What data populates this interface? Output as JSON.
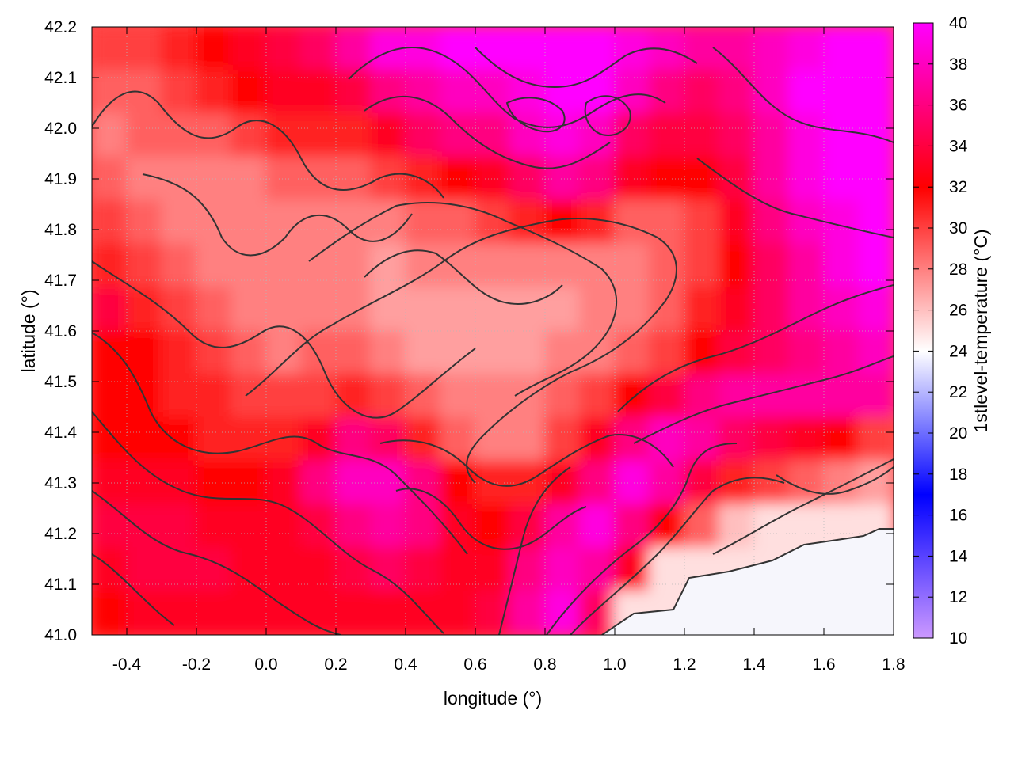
{
  "chart_data": {
    "type": "heatmap",
    "title": "",
    "xlabel": "longitude (°)",
    "ylabel": "latitude (°)",
    "colorbar_label": "1stlevel-temperature (°C)",
    "xlim": [
      -0.5,
      1.8
    ],
    "ylim": [
      41.0,
      42.2
    ],
    "colorbar_range": [
      10,
      40
    ],
    "x_ticks": [
      "-0.4",
      "-0.2",
      "0.0",
      "0.2",
      "0.4",
      "0.6",
      "0.8",
      "1.0",
      "1.2",
      "1.4",
      "1.6",
      "1.8"
    ],
    "x_tick_values": [
      -0.4,
      -0.2,
      0.0,
      0.2,
      0.4,
      0.6,
      0.8,
      1.0,
      1.2,
      1.4,
      1.6,
      1.8
    ],
    "y_ticks": [
      "41.0",
      "41.1",
      "41.2",
      "41.3",
      "41.4",
      "41.5",
      "41.6",
      "41.7",
      "41.8",
      "41.9",
      "42.0",
      "42.1",
      "42.2"
    ],
    "y_tick_values": [
      41.0,
      41.1,
      41.2,
      41.3,
      41.4,
      41.5,
      41.6,
      41.7,
      41.8,
      41.9,
      42.0,
      42.1,
      42.2
    ],
    "colorbar_ticks": [
      "10",
      "12",
      "14",
      "16",
      "18",
      "20",
      "22",
      "24",
      "26",
      "28",
      "30",
      "32",
      "34",
      "36",
      "38",
      "40"
    ],
    "colorbar_tick_values": [
      10,
      12,
      14,
      16,
      18,
      20,
      22,
      24,
      26,
      28,
      30,
      32,
      34,
      36,
      38,
      40
    ],
    "colormap_stops": [
      {
        "value": 10,
        "color": "#cc99ff"
      },
      {
        "value": 17,
        "color": "#0000ff"
      },
      {
        "value": 24,
        "color": "#ffffff"
      },
      {
        "value": 32,
        "color": "#ff0000"
      },
      {
        "value": 40,
        "color": "#ff00ff"
      }
    ],
    "grid": true,
    "contour_color": "#333333",
    "heatmap_cells": [
      [
        30,
        30,
        31,
        32,
        33,
        34,
        35,
        37,
        39,
        39,
        40,
        40,
        40,
        40,
        40,
        39,
        38,
        37,
        37,
        38,
        39,
        40,
        40
      ],
      [
        29,
        29,
        30,
        31,
        32,
        33,
        33,
        34,
        36,
        37,
        38,
        38,
        39,
        40,
        40,
        38,
        36,
        35,
        36,
        38,
        40,
        40,
        40
      ],
      [
        28,
        29,
        29,
        29,
        30,
        31,
        31,
        31,
        33,
        35,
        36,
        36,
        38,
        39,
        38,
        35,
        34,
        34,
        35,
        37,
        39,
        40,
        40
      ],
      [
        29,
        28,
        28,
        28,
        28,
        29,
        29,
        29,
        30,
        31,
        32,
        33,
        35,
        37,
        36,
        33,
        32,
        32,
        34,
        37,
        39,
        40,
        40
      ],
      [
        30,
        29,
        28,
        28,
        28,
        28,
        28,
        28,
        28,
        29,
        29,
        30,
        31,
        32,
        31,
        29,
        29,
        30,
        33,
        36,
        38,
        39,
        40
      ],
      [
        31,
        30,
        29,
        28,
        28,
        28,
        28,
        28,
        27,
        28,
        28,
        28,
        28,
        28,
        28,
        28,
        29,
        30,
        32,
        35,
        37,
        39,
        40
      ],
      [
        34,
        31,
        30,
        29,
        28,
        28,
        28,
        28,
        27,
        27,
        27,
        27,
        27,
        27,
        28,
        28,
        29,
        31,
        33,
        35,
        37,
        38,
        39
      ],
      [
        32,
        32,
        31,
        30,
        29,
        28,
        29,
        29,
        28,
        27,
        27,
        27,
        27,
        28,
        28,
        29,
        30,
        32,
        34,
        35,
        36,
        37,
        38
      ],
      [
        32,
        32,
        31,
        31,
        30,
        30,
        30,
        31,
        30,
        29,
        28,
        28,
        28,
        29,
        30,
        32,
        34,
        36,
        37,
        37,
        37,
        37,
        37
      ],
      [
        32,
        32,
        32,
        31,
        31,
        31,
        33,
        36,
        35,
        31,
        29,
        28,
        28,
        30,
        33,
        36,
        38,
        37,
        35,
        34,
        33,
        32,
        30
      ],
      [
        33,
        33,
        33,
        32,
        32,
        33,
        36,
        38,
        38,
        36,
        32,
        31,
        31,
        33,
        36,
        39,
        37,
        34,
        31,
        30,
        29,
        28,
        27
      ],
      [
        34,
        34,
        34,
        33,
        33,
        33,
        34,
        36,
        37,
        36,
        33,
        32,
        34,
        37,
        39,
        36,
        32,
        29,
        26,
        25,
        25,
        25,
        25
      ],
      [
        33,
        34,
        34,
        34,
        33,
        33,
        33,
        34,
        35,
        34,
        33,
        33,
        36,
        38,
        37,
        33,
        25,
        25,
        25,
        25,
        25,
        25,
        25
      ],
      [
        32,
        33,
        33,
        33,
        33,
        33,
        33,
        33,
        33,
        33,
        33,
        34,
        37,
        39,
        35,
        25,
        25,
        25,
        25,
        25,
        25,
        25,
        25
      ]
    ]
  }
}
